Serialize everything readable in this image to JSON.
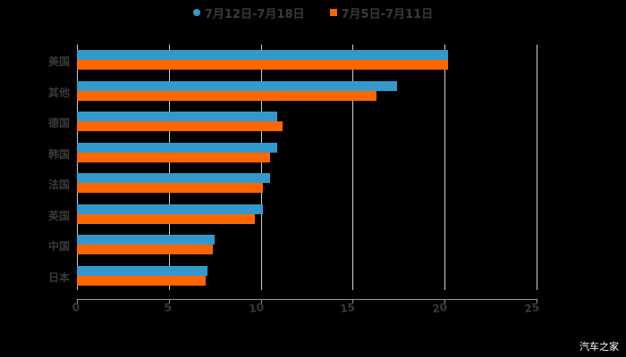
{
  "chart_data": {
    "type": "bar",
    "orientation": "horizontal",
    "title": "",
    "xlabel": "",
    "ylabel": "",
    "xlim": [
      0,
      25
    ],
    "x_ticks": [
      0,
      5,
      10,
      15,
      20,
      25
    ],
    "grid": true,
    "legend_position": "top",
    "categories": [
      "美国",
      "其他",
      "德国",
      "韩国",
      "法国",
      "英国",
      "中国",
      "日本"
    ],
    "series": [
      {
        "name": "7月12日-7月18日",
        "color": "#3399CC",
        "marker": "circle",
        "values": [
          20.2,
          17.4,
          10.9,
          10.9,
          10.5,
          10.1,
          7.5,
          7.1
        ]
      },
      {
        "name": "7月5日-7月11日",
        "color": "#FF6600",
        "marker": "square",
        "values": [
          20.2,
          16.3,
          11.2,
          10.5,
          10.1,
          9.7,
          7.4,
          7.0
        ]
      }
    ]
  },
  "legend": {
    "items": [
      {
        "label": "7月12日-7月18日",
        "color": "#3399CC"
      },
      {
        "label": "7月5日-7月11日",
        "color": "#FF6600"
      }
    ]
  },
  "axis": {
    "tick_labels": [
      "0",
      "5",
      "10",
      "15",
      "20",
      "25"
    ]
  },
  "watermark": "汽车之家"
}
